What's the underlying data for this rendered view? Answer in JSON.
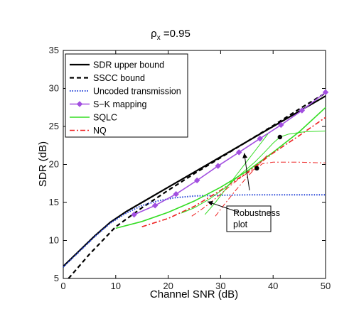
{
  "chart_data": {
    "type": "line",
    "title_main": "ρ",
    "title_sub": "x",
    "title_rest": " =0.95",
    "xlabel": "Channel SNR (dB)",
    "ylabel": "SDR (dB)",
    "xlim": [
      0,
      50
    ],
    "ylim": [
      5,
      35
    ],
    "xticks": [
      0,
      10,
      20,
      30,
      40,
      50
    ],
    "yticks": [
      5,
      10,
      15,
      20,
      25,
      30,
      35
    ],
    "grid": false,
    "legend_position": "top-left",
    "series": [
      {
        "name": "SDR upper bound",
        "color": "#000000",
        "style": "solid",
        "x": [
          0,
          3,
          6,
          9,
          12,
          15,
          20,
          25,
          30,
          35,
          40,
          45,
          50
        ],
        "y": [
          6.6,
          8.6,
          10.6,
          12.4,
          13.8,
          15.0,
          17.0,
          19.0,
          21.0,
          23.0,
          25.0,
          27.0,
          29.0
        ]
      },
      {
        "name": "SSCC bound",
        "color": "#000000",
        "style": "dashed",
        "x": [
          1,
          5,
          10,
          15,
          20,
          25,
          30,
          35,
          40,
          45,
          50
        ],
        "y": [
          5.0,
          8.2,
          11.8,
          14.3,
          16.6,
          18.8,
          20.9,
          23.0,
          25.1,
          27.3,
          29.4
        ]
      },
      {
        "name": "Uncoded transmission",
        "color": "#1f3fd6",
        "style": "dotted",
        "x": [
          0,
          3,
          6,
          9,
          12,
          15,
          18,
          21,
          25,
          30,
          35,
          40,
          45,
          50
        ],
        "y": [
          6.5,
          8.5,
          10.5,
          12.3,
          13.6,
          14.6,
          15.2,
          15.6,
          15.85,
          15.95,
          16.0,
          16.0,
          16.0,
          16.0
        ]
      },
      {
        "name": "S−K mapping",
        "color": "#a24fe0",
        "style": "solid",
        "marker": "diamond",
        "x": [
          13.5,
          17.5,
          21.5,
          25.5,
          29.5,
          33.5,
          37.5,
          41.5,
          45.5,
          50
        ],
        "y": [
          13.4,
          14.6,
          16.1,
          17.9,
          19.8,
          21.6,
          23.4,
          25.2,
          27.1,
          29.5
        ]
      },
      {
        "name": "SQLC",
        "color": "#33dd22",
        "style": "solid",
        "x": [
          10,
          15,
          20,
          25,
          30,
          35,
          40,
          45,
          50
        ],
        "y": [
          11.6,
          12.5,
          13.7,
          15.2,
          17.0,
          19.1,
          21.6,
          24.3,
          27.5
        ]
      },
      {
        "name": "NQ",
        "color": "#ee2222",
        "style": "dashdot",
        "x": [
          15,
          20,
          25,
          30,
          35,
          40,
          45,
          50
        ],
        "y": [
          11.8,
          12.9,
          14.5,
          16.6,
          18.9,
          21.5,
          23.8,
          26.2
        ]
      }
    ],
    "robustness_curves": [
      {
        "color": "#33dd22",
        "style": "solid",
        "x": [
          22.5,
          25,
          28,
          31,
          34,
          36.5,
          38.5,
          40,
          41.3,
          43,
          46,
          50
        ],
        "y": [
          13.6,
          14.3,
          15.5,
          17.0,
          18.8,
          20.3,
          21.7,
          22.8,
          23.6,
          24.0,
          24.3,
          24.4
        ]
      },
      {
        "color": "#33dd22",
        "style": "solid",
        "x": [
          27,
          29,
          31,
          33,
          35,
          37,
          39
        ],
        "y": [
          13.4,
          15.0,
          16.8,
          18.6,
          20.4,
          22.2,
          24.0
        ]
      },
      {
        "color": "#ee2222",
        "style": "dashdot",
        "x": [
          24.5,
          27,
          29.5,
          32,
          34.5,
          37,
          38,
          40,
          45,
          50
        ],
        "y": [
          13.2,
          14.4,
          15.8,
          17.3,
          18.6,
          19.6,
          20.1,
          20.3,
          20.3,
          20.2
        ]
      },
      {
        "color": "#ee2222",
        "style": "dashdot",
        "x": [
          29,
          31,
          33,
          35,
          37,
          39
        ],
        "y": [
          13.2,
          15.0,
          16.7,
          18.3,
          19.8,
          21.3
        ]
      }
    ],
    "points": [
      {
        "x": 41.3,
        "y": 23.6,
        "color": "#000000"
      },
      {
        "x": 36.9,
        "y": 19.5,
        "color": "#000000"
      }
    ],
    "annotation": {
      "line1": "Robustness",
      "line2": "plot",
      "arrows": [
        {
          "from": [
            35.5,
            16.6
          ],
          "to": [
            34.5,
            21.5
          ]
        },
        {
          "from": [
            33.5,
            13.7
          ],
          "to": [
            27.5,
            15.1
          ]
        }
      ]
    }
  }
}
